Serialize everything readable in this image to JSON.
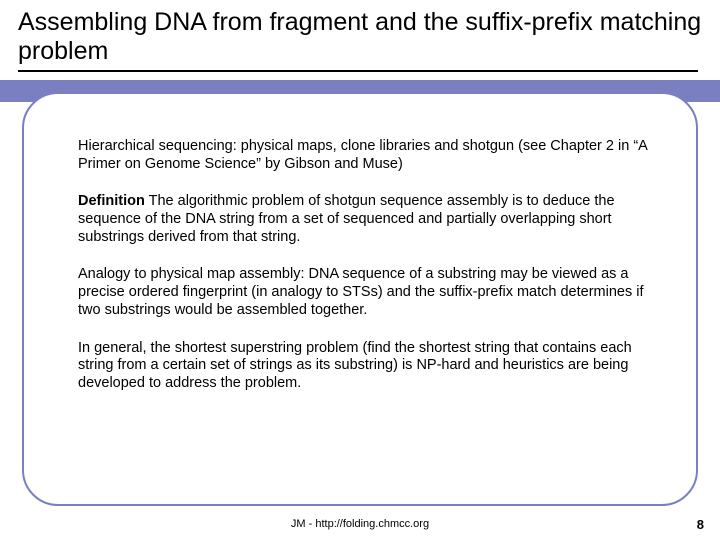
{
  "colors": {
    "accent": "#7a7fc2",
    "text": "#000000",
    "background": "#ffffff",
    "underline": "#000000"
  },
  "layout": {
    "slide_width": 720,
    "slide_height": 540,
    "accent_bar_height": 22,
    "frame_border_radius": 36,
    "frame_border_width": 2
  },
  "typography": {
    "title_fontsize": 25,
    "body_fontsize": 14.5,
    "footer_fontsize": 11,
    "pagenum_fontsize": 13,
    "font_family": "Arial"
  },
  "title": "Assembling DNA from fragment and the suffix-prefix matching problem",
  "paragraphs": {
    "p1": "Hierarchical sequencing: physical maps, clone libraries and shotgun (see Chapter 2 in “A Primer on Genome Science” by Gibson and Muse)",
    "p2_lead": "Definition",
    "p2_rest": " The algorithmic problem of shotgun sequence assembly is to deduce the sequence of the DNA string from a set of sequenced and partially overlapping short substrings derived from that string.",
    "p3": "Analogy to physical map assembly: DNA sequence of a substring may be viewed as a precise ordered fingerprint (in analogy to STSs) and the suffix-prefix match determines if two substrings would be assembled together.",
    "p4": "In general, the shortest superstring problem (find the shortest string that contains each string from a certain set of strings as its substring) is NP-hard and heuristics are being developed to address the problem."
  },
  "footer": "JM - http://folding.chmcc.org",
  "page_number": "8"
}
